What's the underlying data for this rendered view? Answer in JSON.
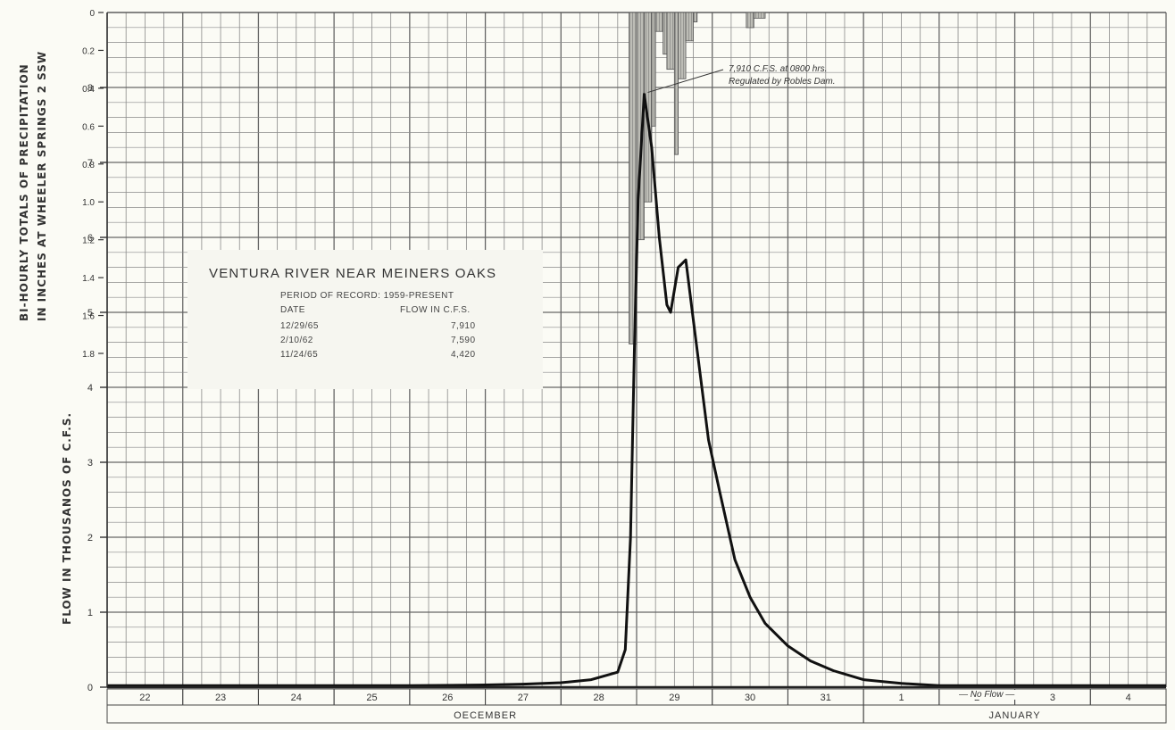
{
  "chart_data": {
    "type": "line",
    "title": "VENTURA RIVER NEAR MEINERS OAKS",
    "ylabel": "FLOW IN THOUSANOS OF C.F.S.",
    "ylim": [
      0,
      9
    ],
    "y_ticks": [
      "0",
      "1",
      "2",
      "3",
      "4",
      "5",
      "6",
      "7",
      "8"
    ],
    "precip_axis": {
      "label_line1": "BI-HOURLY TOTALS OF PRECIPITATION",
      "label_line2": "IN INCHES AT WHEELER SPRINGS 2 SSW",
      "ticks": [
        "0",
        "0.2",
        "0.4",
        "0.6",
        "0.8",
        "1.0",
        "1.2",
        "1.4",
        "1.6",
        "1.8"
      ],
      "range": [
        0,
        1.8
      ]
    },
    "x_day_labels": [
      "22",
      "23",
      "24",
      "25",
      "26",
      "27",
      "28",
      "29",
      "30",
      "31",
      "1",
      "2",
      "3",
      "4"
    ],
    "months": [
      {
        "name": "OECEMBER",
        "start_day_index": 0,
        "end_day_index": 10
      },
      {
        "name": "JANUARY",
        "start_day_index": 10,
        "end_day_index": 14
      }
    ],
    "grid": true,
    "series": [
      {
        "kind": "flow",
        "x_days": [
          0,
          1,
          2,
          3,
          4,
          5,
          5.5,
          6,
          6.4,
          6.75,
          6.85,
          6.92,
          6.97,
          7.02,
          7.1,
          7.2,
          7.3,
          7.4,
          7.45,
          7.55,
          7.65,
          7.75,
          7.85,
          7.95,
          8.1,
          8.3,
          8.5,
          8.7,
          9.0,
          9.3,
          9.6,
          10.0,
          10.5,
          11,
          12,
          13,
          14
        ],
        "values": [
          0.02,
          0.02,
          0.02,
          0.02,
          0.02,
          0.03,
          0.04,
          0.06,
          0.1,
          0.2,
          0.5,
          2.0,
          4.5,
          6.5,
          7.91,
          7.2,
          6.0,
          5.1,
          5.0,
          5.6,
          5.7,
          4.9,
          4.1,
          3.3,
          2.6,
          1.7,
          1.2,
          0.85,
          0.55,
          0.35,
          0.22,
          0.1,
          0.05,
          0.02,
          0.02,
          0.02,
          0.02
        ]
      },
      {
        "kind": "precipitation",
        "bins": [
          [
            6.9,
            7.0,
            1.75
          ],
          [
            7.0,
            7.1,
            1.2
          ],
          [
            7.1,
            7.2,
            1.0
          ],
          [
            7.2,
            7.25,
            0.6
          ],
          [
            7.25,
            7.35,
            0.1
          ],
          [
            7.35,
            7.4,
            0.22
          ],
          [
            7.4,
            7.5,
            0.3
          ],
          [
            7.5,
            7.55,
            0.75
          ],
          [
            7.55,
            7.65,
            0.35
          ],
          [
            7.65,
            7.75,
            0.15
          ],
          [
            7.75,
            7.8,
            0.05
          ],
          [
            8.45,
            8.55,
            0.08
          ],
          [
            8.55,
            8.7,
            0.03
          ]
        ]
      }
    ]
  },
  "info_box": {
    "title": "VENTURA RIVER NEAR MEINERS OAKS",
    "period": "PERIOD OF RECORD: 1959-PRESENT",
    "col_date": "DATE",
    "col_flow": "FLOW IN C.F.S.",
    "rows": [
      {
        "date": "12/29/65",
        "flow": "7,910"
      },
      {
        "date": "2/10/62",
        "flow": "7,590"
      },
      {
        "date": "11/24/65",
        "flow": "4,420"
      }
    ]
  },
  "annotation": {
    "line1": "7,910 C.F.S. at 0800 hrs.",
    "line2": "Regulated by Robles Dam."
  },
  "no_flow_label": "— No Flow —"
}
